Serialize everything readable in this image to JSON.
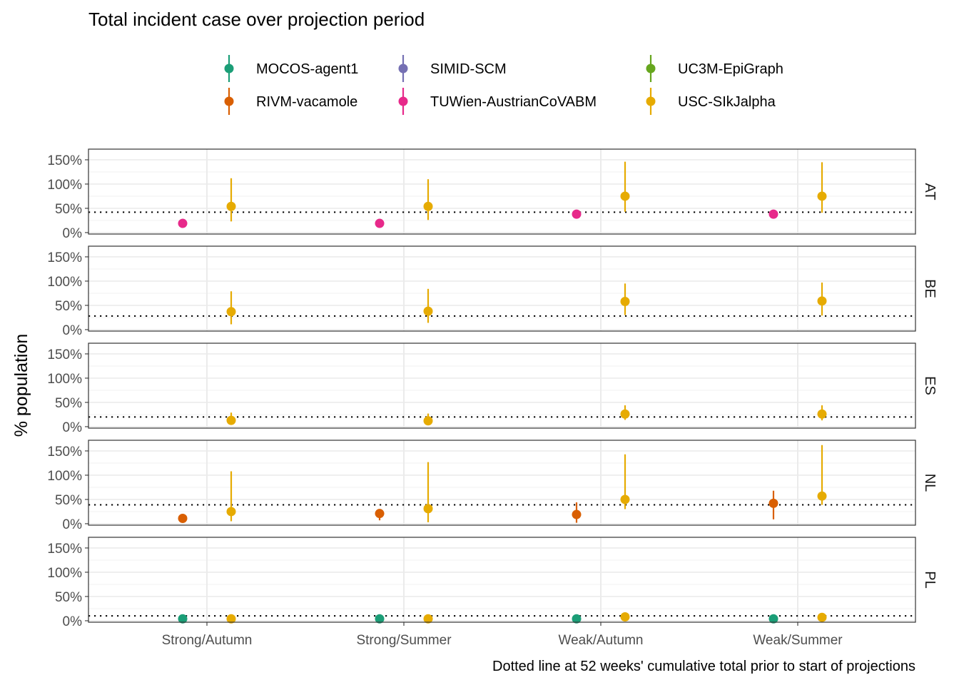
{
  "chart_data": {
    "type": "scatter",
    "title": "Total incident case over projection period",
    "ylabel": "% population",
    "xlabel": "",
    "caption": "Dotted line at 52 weeks' cumulative total prior to start of projections",
    "categories": [
      "Strong/Autumn",
      "Strong/Summer",
      "Weak/Autumn",
      "Weak/Summer"
    ],
    "y_ticks": [
      "0%",
      "50%",
      "100%",
      "150%"
    ],
    "ylim": [
      -0.03,
      1.72
    ],
    "grid": true,
    "legend_position": "top",
    "legend": [
      {
        "name": "MOCOS-agent1",
        "color": "#1b9e77"
      },
      {
        "name": "RIVM-vacamole",
        "color": "#d95f02"
      },
      {
        "name": "SIMID-SCM",
        "color": "#7570b3"
      },
      {
        "name": "TUWien-AustrianCoVABM",
        "color": "#e7298a"
      },
      {
        "name": "UC3M-EpiGraph",
        "color": "#66a61e"
      },
      {
        "name": "USC-SIkJalpha",
        "color": "#e6ab02"
      }
    ],
    "panels": [
      {
        "label": "AT",
        "reference": 0.42,
        "points": [
          {
            "model": "TUWien-AustrianCoVABM",
            "scenario": "Strong/Autumn",
            "value": 0.19,
            "lower": null,
            "upper": null
          },
          {
            "model": "USC-SIkJalpha",
            "scenario": "Strong/Autumn",
            "value": 0.54,
            "lower": 0.23,
            "upper": 1.12
          },
          {
            "model": "TUWien-AustrianCoVABM",
            "scenario": "Strong/Summer",
            "value": 0.19,
            "lower": null,
            "upper": null
          },
          {
            "model": "USC-SIkJalpha",
            "scenario": "Strong/Summer",
            "value": 0.54,
            "lower": 0.26,
            "upper": 1.1
          },
          {
            "model": "TUWien-AustrianCoVABM",
            "scenario": "Weak/Autumn",
            "value": 0.38,
            "lower": null,
            "upper": null
          },
          {
            "model": "USC-SIkJalpha",
            "scenario": "Weak/Autumn",
            "value": 0.75,
            "lower": 0.43,
            "upper": 1.46
          },
          {
            "model": "TUWien-AustrianCoVABM",
            "scenario": "Weak/Summer",
            "value": 0.38,
            "lower": null,
            "upper": null
          },
          {
            "model": "USC-SIkJalpha",
            "scenario": "Weak/Summer",
            "value": 0.75,
            "lower": 0.41,
            "upper": 1.45
          }
        ]
      },
      {
        "label": "BE",
        "reference": 0.28,
        "points": [
          {
            "model": "USC-SIkJalpha",
            "scenario": "Strong/Autumn",
            "value": 0.37,
            "lower": 0.11,
            "upper": 0.79
          },
          {
            "model": "USC-SIkJalpha",
            "scenario": "Strong/Summer",
            "value": 0.38,
            "lower": 0.14,
            "upper": 0.84
          },
          {
            "model": "USC-SIkJalpha",
            "scenario": "Weak/Autumn",
            "value": 0.58,
            "lower": 0.3,
            "upper": 0.95
          },
          {
            "model": "USC-SIkJalpha",
            "scenario": "Weak/Summer",
            "value": 0.59,
            "lower": 0.29,
            "upper": 0.97
          }
        ]
      },
      {
        "label": "ES",
        "reference": 0.2,
        "points": [
          {
            "model": "USC-SIkJalpha",
            "scenario": "Strong/Autumn",
            "value": 0.13,
            "lower": 0.06,
            "upper": 0.29
          },
          {
            "model": "USC-SIkJalpha",
            "scenario": "Strong/Summer",
            "value": 0.12,
            "lower": 0.05,
            "upper": 0.27
          },
          {
            "model": "USC-SIkJalpha",
            "scenario": "Weak/Autumn",
            "value": 0.26,
            "lower": 0.14,
            "upper": 0.44
          },
          {
            "model": "USC-SIkJalpha",
            "scenario": "Weak/Summer",
            "value": 0.26,
            "lower": 0.13,
            "upper": 0.44
          }
        ]
      },
      {
        "label": "NL",
        "reference": 0.39,
        "points": [
          {
            "model": "RIVM-vacamole",
            "scenario": "Strong/Autumn",
            "value": 0.11,
            "lower": 0.07,
            "upper": 0.15
          },
          {
            "model": "USC-SIkJalpha",
            "scenario": "Strong/Autumn",
            "value": 0.25,
            "lower": 0.05,
            "upper": 1.08
          },
          {
            "model": "RIVM-vacamole",
            "scenario": "Strong/Summer",
            "value": 0.21,
            "lower": 0.07,
            "upper": 0.3
          },
          {
            "model": "USC-SIkJalpha",
            "scenario": "Strong/Summer",
            "value": 0.31,
            "lower": 0.03,
            "upper": 1.27
          },
          {
            "model": "RIVM-vacamole",
            "scenario": "Weak/Autumn",
            "value": 0.19,
            "lower": 0.02,
            "upper": 0.44
          },
          {
            "model": "USC-SIkJalpha",
            "scenario": "Weak/Autumn",
            "value": 0.5,
            "lower": 0.3,
            "upper": 1.43
          },
          {
            "model": "RIVM-vacamole",
            "scenario": "Weak/Summer",
            "value": 0.42,
            "lower": 0.09,
            "upper": 0.68
          },
          {
            "model": "USC-SIkJalpha",
            "scenario": "Weak/Summer",
            "value": 0.57,
            "lower": 0.39,
            "upper": 1.62
          }
        ]
      },
      {
        "label": "PL",
        "reference": 0.1,
        "points": [
          {
            "model": "MOCOS-agent1",
            "scenario": "Strong/Autumn",
            "value": 0.04,
            "lower": null,
            "upper": null
          },
          {
            "model": "USC-SIkJalpha",
            "scenario": "Strong/Autumn",
            "value": 0.04,
            "lower": 0.02,
            "upper": 0.06
          },
          {
            "model": "MOCOS-agent1",
            "scenario": "Strong/Summer",
            "value": 0.04,
            "lower": null,
            "upper": null
          },
          {
            "model": "USC-SIkJalpha",
            "scenario": "Strong/Summer",
            "value": 0.04,
            "lower": 0.02,
            "upper": 0.06
          },
          {
            "model": "MOCOS-agent1",
            "scenario": "Weak/Autumn",
            "value": 0.04,
            "lower": null,
            "upper": null
          },
          {
            "model": "USC-SIkJalpha",
            "scenario": "Weak/Autumn",
            "value": 0.08,
            "lower": 0.04,
            "upper": 0.12
          },
          {
            "model": "MOCOS-agent1",
            "scenario": "Weak/Summer",
            "value": 0.04,
            "lower": null,
            "upper": null
          },
          {
            "model": "USC-SIkJalpha",
            "scenario": "Weak/Summer",
            "value": 0.07,
            "lower": 0.04,
            "upper": 0.11
          }
        ]
      }
    ]
  }
}
